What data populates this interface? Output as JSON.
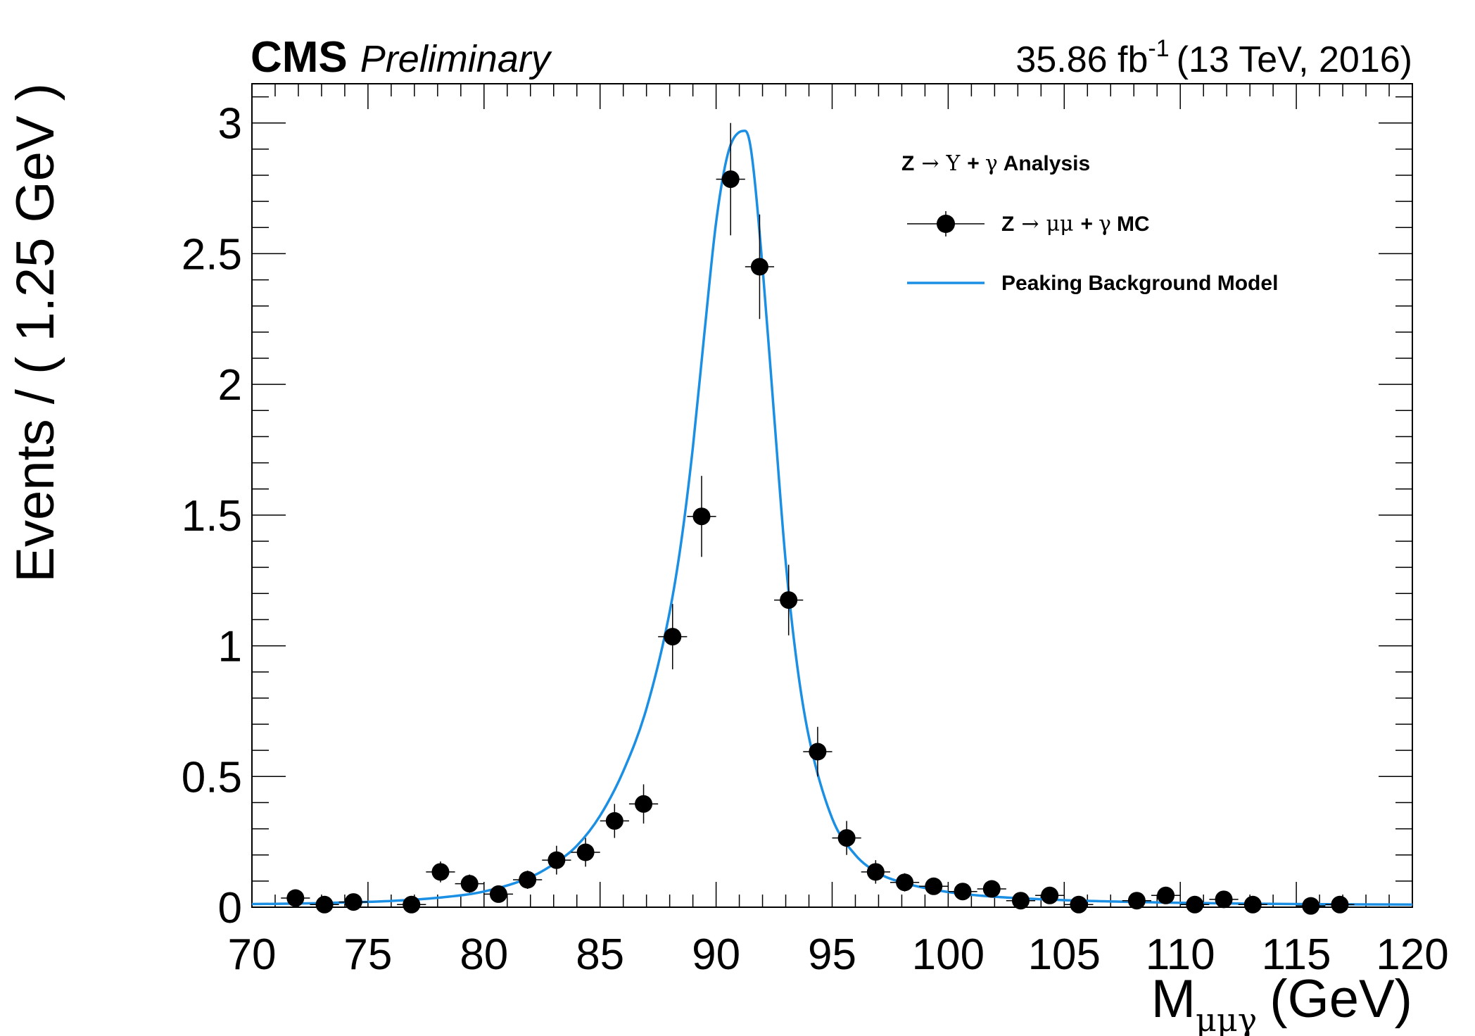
{
  "chart_data": {
    "type": "scatter",
    "experiment": "CMS",
    "status": "Preliminary",
    "luminosity": {
      "value": "35.86 fb",
      "exponent": "-1",
      "suffix": "(13 TeV, 2016)"
    },
    "xlabel": {
      "main": "M",
      "subscript": "μμγ",
      "unit": "(GeV)"
    },
    "ylabel": "Events / ( 1.25 GeV )",
    "xlim": [
      70,
      120
    ],
    "ylim": [
      0,
      3.15
    ],
    "xticks": [
      70,
      75,
      80,
      85,
      90,
      95,
      100,
      105,
      110,
      115,
      120
    ],
    "xtick_labels": [
      "70",
      "75",
      "80",
      "85",
      "90",
      "95",
      "100",
      "105",
      "110",
      "115",
      "120"
    ],
    "yticks": [
      0,
      0.5,
      1,
      1.5,
      2,
      2.5,
      3
    ],
    "ytick_labels": [
      "0",
      "0.5",
      "1",
      "1.5",
      "2",
      "2.5",
      "3"
    ],
    "grid": false,
    "legend": {
      "placement": "top-right",
      "header": {
        "pre": "Z",
        "arrow": "→",
        "particle": "Υ",
        "plus": "+",
        "gamma": "γ",
        "post": "Analysis"
      },
      "entries": [
        {
          "pre": "Z",
          "arrow": "→",
          "particle": "μμ",
          "plus": "+",
          "gamma": "γ",
          "post": "MC"
        },
        {
          "text": "Peaking Background Model"
        }
      ]
    },
    "series": [
      {
        "kind": "points",
        "color": "#000000",
        "bin_width": 1.25,
        "x": [
          71.875,
          73.125,
          74.375,
          76.875,
          78.125,
          79.375,
          80.625,
          81.875,
          83.125,
          84.375,
          85.625,
          86.875,
          88.125,
          89.375,
          90.625,
          91.875,
          93.125,
          94.375,
          95.625,
          96.875,
          98.125,
          99.375,
          100.625,
          101.875,
          103.125,
          104.375,
          105.625,
          108.125,
          109.375,
          110.625,
          111.875,
          113.125,
          115.625,
          116.875
        ],
        "y": [
          0.035,
          0.01,
          0.02,
          0.01,
          0.135,
          0.09,
          0.05,
          0.105,
          0.18,
          0.21,
          0.33,
          0.395,
          1.035,
          1.495,
          2.785,
          2.45,
          1.175,
          0.595,
          0.265,
          0.135,
          0.095,
          0.08,
          0.06,
          0.07,
          0.025,
          0.045,
          0.01,
          0.025,
          0.045,
          0.01,
          0.03,
          0.01,
          0.005,
          0.01
        ],
        "yerr": [
          0.015,
          0.01,
          0.01,
          0.01,
          0.04,
          0.035,
          0.025,
          0.035,
          0.055,
          0.055,
          0.065,
          0.075,
          0.125,
          0.155,
          0.215,
          0.2,
          0.135,
          0.095,
          0.065,
          0.045,
          0.035,
          0.03,
          0.025,
          0.03,
          0.015,
          0.02,
          0.01,
          0.015,
          0.02,
          0.01,
          0.015,
          0.01,
          0.005,
          0.01
        ]
      },
      {
        "kind": "line",
        "color": "#1a8fe3",
        "x": [
          70,
          72,
          74,
          76,
          78,
          80,
          82,
          83,
          84,
          85,
          86,
          87,
          88,
          88.5,
          89,
          89.5,
          90,
          90.5,
          91,
          91.25,
          91.5,
          92,
          92.5,
          93,
          93.5,
          94,
          95,
          96,
          97,
          98,
          100,
          102,
          105,
          110,
          115,
          120
        ],
        "y": [
          0.012,
          0.014,
          0.018,
          0.024,
          0.036,
          0.06,
          0.115,
          0.165,
          0.235,
          0.35,
          0.52,
          0.76,
          1.13,
          1.4,
          1.76,
          2.2,
          2.62,
          2.88,
          2.965,
          2.97,
          2.9,
          2.45,
          1.88,
          1.32,
          0.92,
          0.65,
          0.34,
          0.2,
          0.13,
          0.095,
          0.058,
          0.04,
          0.027,
          0.017,
          0.012,
          0.01
        ]
      }
    ]
  }
}
